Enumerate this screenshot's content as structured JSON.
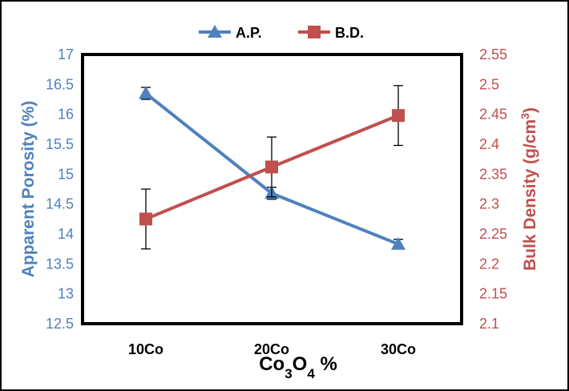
{
  "chart_data": {
    "type": "line",
    "categories": [
      "10Co",
      "20Co",
      "30Co"
    ],
    "xlabel": {
      "main": "Co",
      "sub1": "3",
      "mid": "O",
      "sub2": "4",
      "tail": " %"
    },
    "y_left": {
      "label": "Apparent Porosity (%)",
      "ylim": [
        12.5,
        17
      ],
      "ticks": [
        "12.5",
        "13",
        "13.5",
        "14",
        "14.5",
        "15",
        "15.5",
        "16",
        "16.5",
        "17"
      ],
      "color": "#4f81bd"
    },
    "y_right": {
      "label_main": "Bulk Density (g/cm",
      "label_sup": "3",
      "label_end": ")",
      "ylim": [
        2.1,
        2.55
      ],
      "ticks": [
        "2.1",
        "2.15",
        "2.2",
        "2.25",
        "2.3",
        "2.35",
        "2.4",
        "2.45",
        "2.5",
        "2.55"
      ],
      "color": "#c0504d"
    },
    "series": [
      {
        "name": "A.P.",
        "axis": "left",
        "marker": "triangle",
        "color": "#4f81bd",
        "values": [
          16.35,
          14.68,
          13.83
        ],
        "errors": [
          0.1,
          0.1,
          0.08
        ]
      },
      {
        "name": "B.D.",
        "axis": "right",
        "marker": "square",
        "color": "#c0504d",
        "values": [
          2.275,
          2.362,
          2.448
        ],
        "errors": [
          0.05,
          0.05,
          0.05
        ]
      }
    ],
    "legend": "top-center",
    "grid": false
  }
}
